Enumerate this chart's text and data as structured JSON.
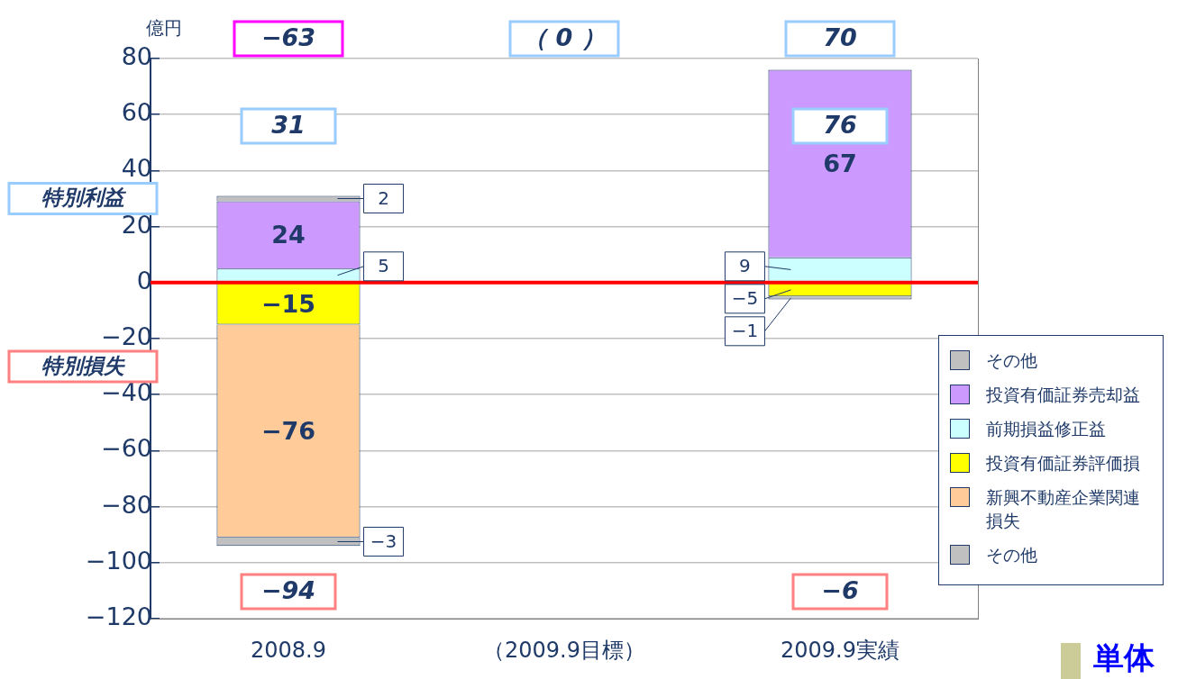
{
  "chart_data": {
    "type": "bar",
    "stacked": true,
    "ylabel": "億円",
    "categories": [
      "2008.9",
      "（2009.9目標）",
      "2009.9実績"
    ],
    "series": [
      {
        "name": "前期損益修正益",
        "color": "#ccffff",
        "values": [
          5,
          null,
          9
        ]
      },
      {
        "name": "投資有価証券売却益",
        "color": "#cc99ff",
        "values": [
          24,
          null,
          67
        ]
      },
      {
        "name": "その他",
        "color": "#c0c0c0",
        "values": [
          2,
          null,
          null
        ]
      },
      {
        "name": "投資有価証券評価損",
        "color": "#ffff00",
        "values": [
          -15,
          null,
          -5
        ]
      },
      {
        "name": "新興不動産企業関連損失",
        "color": "#ffcc99",
        "values": [
          -76,
          null,
          null
        ]
      },
      {
        "name": "その他",
        "color": "#c0c0c0",
        "values": [
          -3,
          null,
          -1
        ]
      }
    ],
    "ylim": [
      -120,
      80
    ],
    "yticks": [
      {
        "value": -120,
        "label": "−120"
      },
      {
        "value": -100,
        "label": "−100"
      },
      {
        "value": -80,
        "label": "−80"
      },
      {
        "value": -60,
        "label": "−60"
      },
      {
        "value": -40,
        "label": "−40"
      },
      {
        "value": -20,
        "label": "−20"
      },
      0,
      20,
      40,
      60,
      80
    ],
    "grid": "y",
    "legend": "bottom right",
    "data_labels": true,
    "ref_lines": [
      {
        "axis": "y",
        "value": 0,
        "color": "#ff0000"
      }
    ],
    "annotations": [
      {
        "text": "31",
        "x": "2008.9",
        "y": 31
      },
      {
        "text": "76",
        "x": "2009.9実績",
        "y": 76
      },
      {
        "text": "−94",
        "x": "2008.9",
        "y": -94
      },
      "−63",
      "（ 0 ）",
      "70",
      "−6",
      "特別利益",
      "特別損失",
      "単体"
    ]
  }
}
